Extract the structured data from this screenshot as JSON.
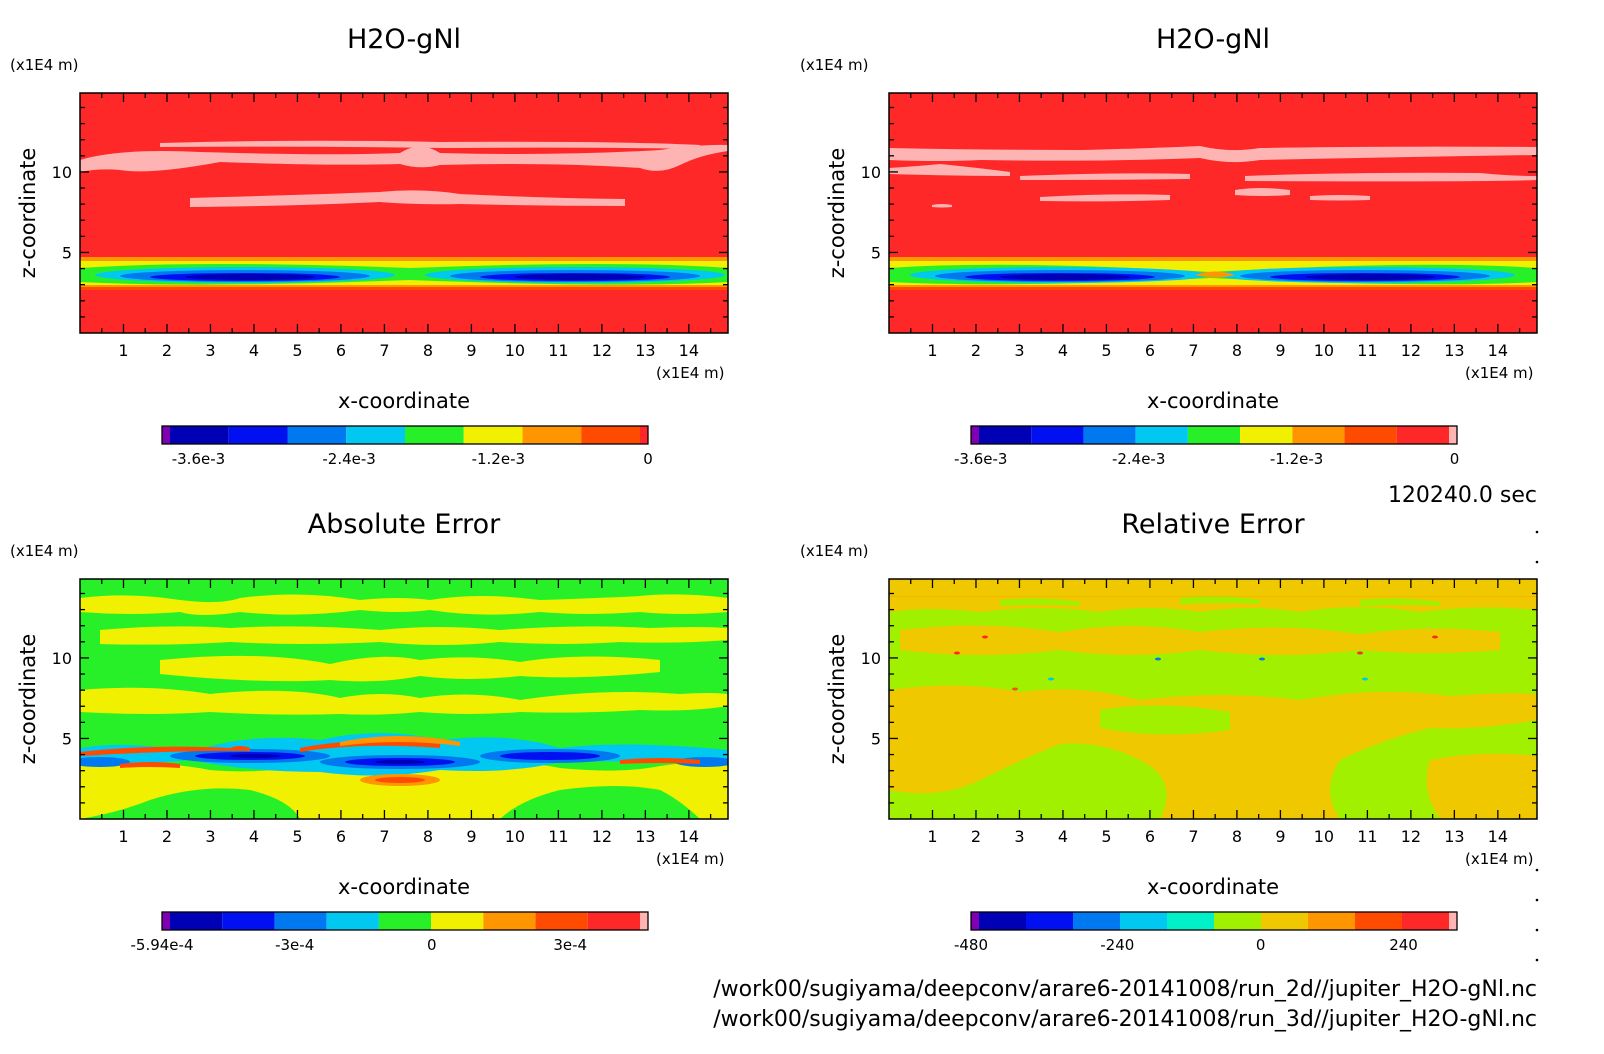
{
  "time_label": "120240.0 sec",
  "footer_lines": [
    "/work00/sugiyama/deepconv/arare6-20141008/run_2d//jupiter_H2O-gNl.nc",
    "/work00/sugiyama/deepconv/arare6-20141008/run_3d//jupiter_H2O-gNl.nc"
  ],
  "chart_data": [
    {
      "type": "heatmap",
      "title": "H2O-gNl",
      "xlabel": "x-coordinate",
      "ylabel": "z-coordinate",
      "x_unit": "(x1E4 m)",
      "y_unit": "(x1E4 m)",
      "xlim": [
        0,
        14.9
      ],
      "ylim": [
        0,
        14.9
      ],
      "x_ticks": [
        1,
        2,
        3,
        4,
        5,
        6,
        7,
        8,
        9,
        10,
        11,
        12,
        13,
        14
      ],
      "y_ticks": [
        5,
        10
      ],
      "colorbar": {
        "colors": [
          "#7f00b0",
          "#0000b4",
          "#0010f0",
          "#0078f0",
          "#00c8f0",
          "#28f028",
          "#f0f000",
          "#ff9600",
          "#ff4b00",
          "#ff2828"
        ],
        "tick_labels": [
          "-3.6e-3",
          "-2.4e-3",
          "-1.2e-3",
          "0"
        ]
      },
      "background": "#ff2828"
    },
    {
      "type": "heatmap",
      "title": "H2O-gNl",
      "xlabel": "x-coordinate",
      "ylabel": "z-coordinate",
      "x_unit": "(x1E4 m)",
      "y_unit": "(x1E4 m)",
      "xlim": [
        0,
        14.9
      ],
      "ylim": [
        0,
        14.9
      ],
      "x_ticks": [
        1,
        2,
        3,
        4,
        5,
        6,
        7,
        8,
        9,
        10,
        11,
        12,
        13,
        14
      ],
      "y_ticks": [
        5,
        10
      ],
      "colorbar": {
        "colors": [
          "#7f00b0",
          "#0000b4",
          "#0010f0",
          "#0078f0",
          "#00c8f0",
          "#28f028",
          "#f0f000",
          "#ff9600",
          "#ff4b00",
          "#ff2828",
          "#ffb4b4"
        ],
        "tick_labels": [
          "-3.6e-3",
          "-2.4e-3",
          "-1.2e-3",
          "0"
        ]
      },
      "background": "#ff2828"
    },
    {
      "type": "heatmap",
      "title": "Absolute Error",
      "xlabel": "x-coordinate",
      "ylabel": "z-coordinate",
      "x_unit": "(x1E4 m)",
      "y_unit": "(x1E4 m)",
      "xlim": [
        0,
        14.9
      ],
      "ylim": [
        0,
        14.9
      ],
      "x_ticks": [
        1,
        2,
        3,
        4,
        5,
        6,
        7,
        8,
        9,
        10,
        11,
        12,
        13,
        14
      ],
      "y_ticks": [
        5,
        10
      ],
      "colorbar": {
        "colors": [
          "#7f00b0",
          "#0000b4",
          "#0010f0",
          "#0078f0",
          "#00c8f0",
          "#28f028",
          "#f0f000",
          "#ff9600",
          "#ff4b00",
          "#ff2828",
          "#ffb4b4"
        ],
        "tick_labels": [
          "-5.94e-4",
          "-3e-4",
          "0",
          "3e-4"
        ]
      },
      "background": "#28f028"
    },
    {
      "type": "heatmap",
      "title": "Relative Error",
      "xlabel": "x-coordinate",
      "ylabel": "z-coordinate",
      "x_unit": "(x1E4 m)",
      "y_unit": "(x1E4 m)",
      "xlim": [
        0,
        14.9
      ],
      "ylim": [
        0,
        14.9
      ],
      "x_ticks": [
        1,
        2,
        3,
        4,
        5,
        6,
        7,
        8,
        9,
        10,
        11,
        12,
        13,
        14
      ],
      "y_ticks": [
        5,
        10
      ],
      "colorbar": {
        "colors": [
          "#7f00b0",
          "#0000b4",
          "#0010f0",
          "#0078f0",
          "#00c8f0",
          "#00f0c8",
          "#a0f000",
          "#f0c800",
          "#ff9600",
          "#ff4b00",
          "#ff2828",
          "#ffb4b4"
        ],
        "tick_labels": [
          "-480",
          "-240",
          "0",
          "240"
        ]
      },
      "background": "#a0f000"
    }
  ]
}
